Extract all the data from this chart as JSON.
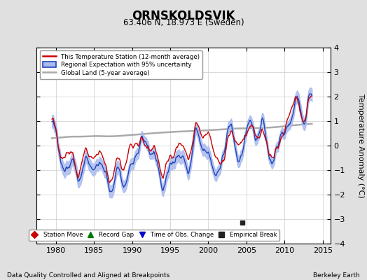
{
  "title": "ORNSKOLDSVIK",
  "subtitle": "63.406 N, 18.973 E (Sweden)",
  "xlabel_bottom": "Data Quality Controlled and Aligned at Breakpoints",
  "xlabel_right": "Berkeley Earth",
  "ylabel": "Temperature Anomaly (°C)",
  "xlim": [
    1977.5,
    2016.0
  ],
  "ylim": [
    -4,
    4
  ],
  "yticks": [
    -4,
    -3,
    -2,
    -1,
    0,
    1,
    2,
    3,
    4
  ],
  "xticks": [
    1980,
    1985,
    1990,
    1995,
    2000,
    2005,
    2010,
    2015
  ],
  "red_color": "#cc0000",
  "blue_color": "#2244bb",
  "blue_fill_color": "#aabbee",
  "gray_color": "#aaaaaa",
  "bg_color": "#e0e0e0",
  "plot_bg_color": "#ffffff",
  "empirical_break_year": 2004.5,
  "empirical_break_value": -3.15,
  "legend_items": [
    {
      "label": "This Temperature Station (12-month average)",
      "color": "#cc0000",
      "lw": 2
    },
    {
      "label": "Regional Expectation with 95% uncertainty",
      "color": "#2244bb",
      "lw": 2
    },
    {
      "label": "Global Land (5-year average)",
      "color": "#aaaaaa",
      "lw": 2
    }
  ],
  "marker_items": [
    {
      "label": "Station Move",
      "color": "#cc0000",
      "marker": "D"
    },
    {
      "label": "Record Gap",
      "color": "#007700",
      "marker": "^"
    },
    {
      "label": "Time of Obs. Change",
      "color": "#0000cc",
      "marker": "v"
    },
    {
      "label": "Empirical Break",
      "color": "#222222",
      "marker": "s"
    }
  ]
}
